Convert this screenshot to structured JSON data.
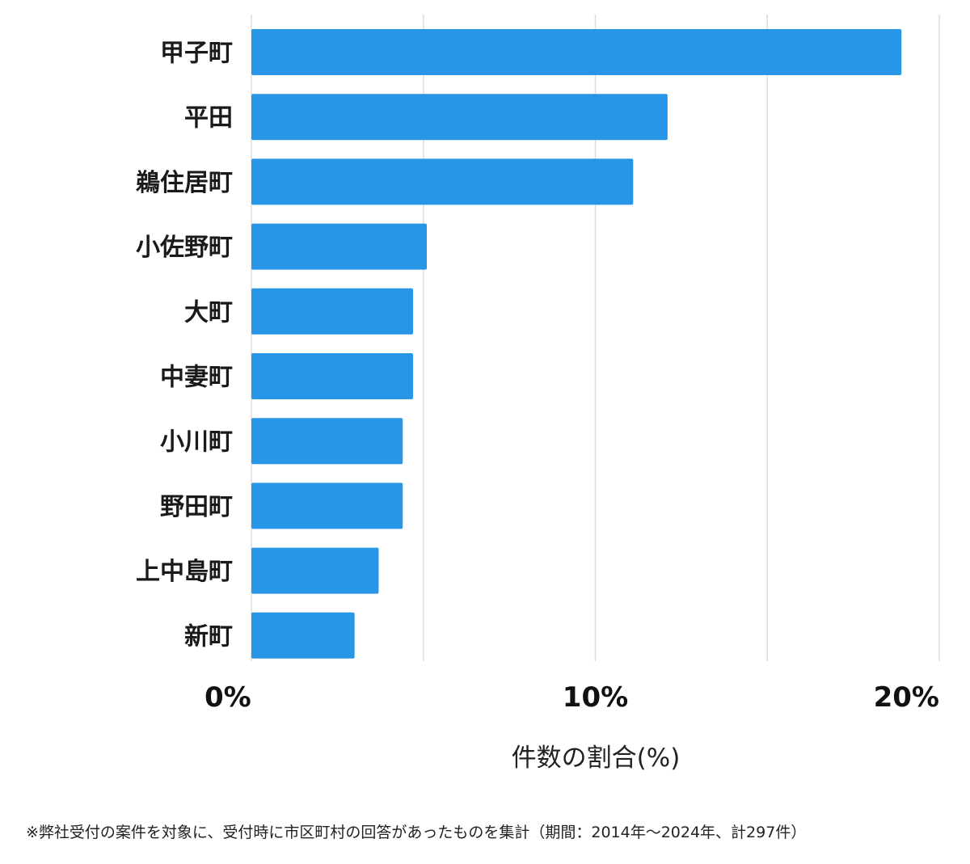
{
  "chart_data": {
    "type": "bar",
    "orientation": "horizontal",
    "categories": [
      "甲子町",
      "平田",
      "鵜住居町",
      "小佐野町",
      "大町",
      "中妻町",
      "小川町",
      "野田町",
      "上中島町",
      "新町"
    ],
    "values": [
      18.9,
      12.1,
      11.1,
      5.1,
      4.7,
      4.7,
      4.4,
      4.4,
      3.7,
      3.0
    ],
    "xlim": [
      0,
      20
    ],
    "xticks": [
      0,
      10,
      20
    ],
    "xtick_labels": [
      "0%",
      "10%",
      "20%"
    ],
    "gridline_values": [
      0,
      5,
      10,
      15,
      20
    ],
    "xlabel": "件数の割合(%)",
    "ylabel": "",
    "bar_color": "#2896e6",
    "grid_color": "#dddddd"
  },
  "footnote": "※弊社受付の案件を対象に、受付時に市区町村の回答があったものを集計（期間：2014年～2024年、計297件）"
}
